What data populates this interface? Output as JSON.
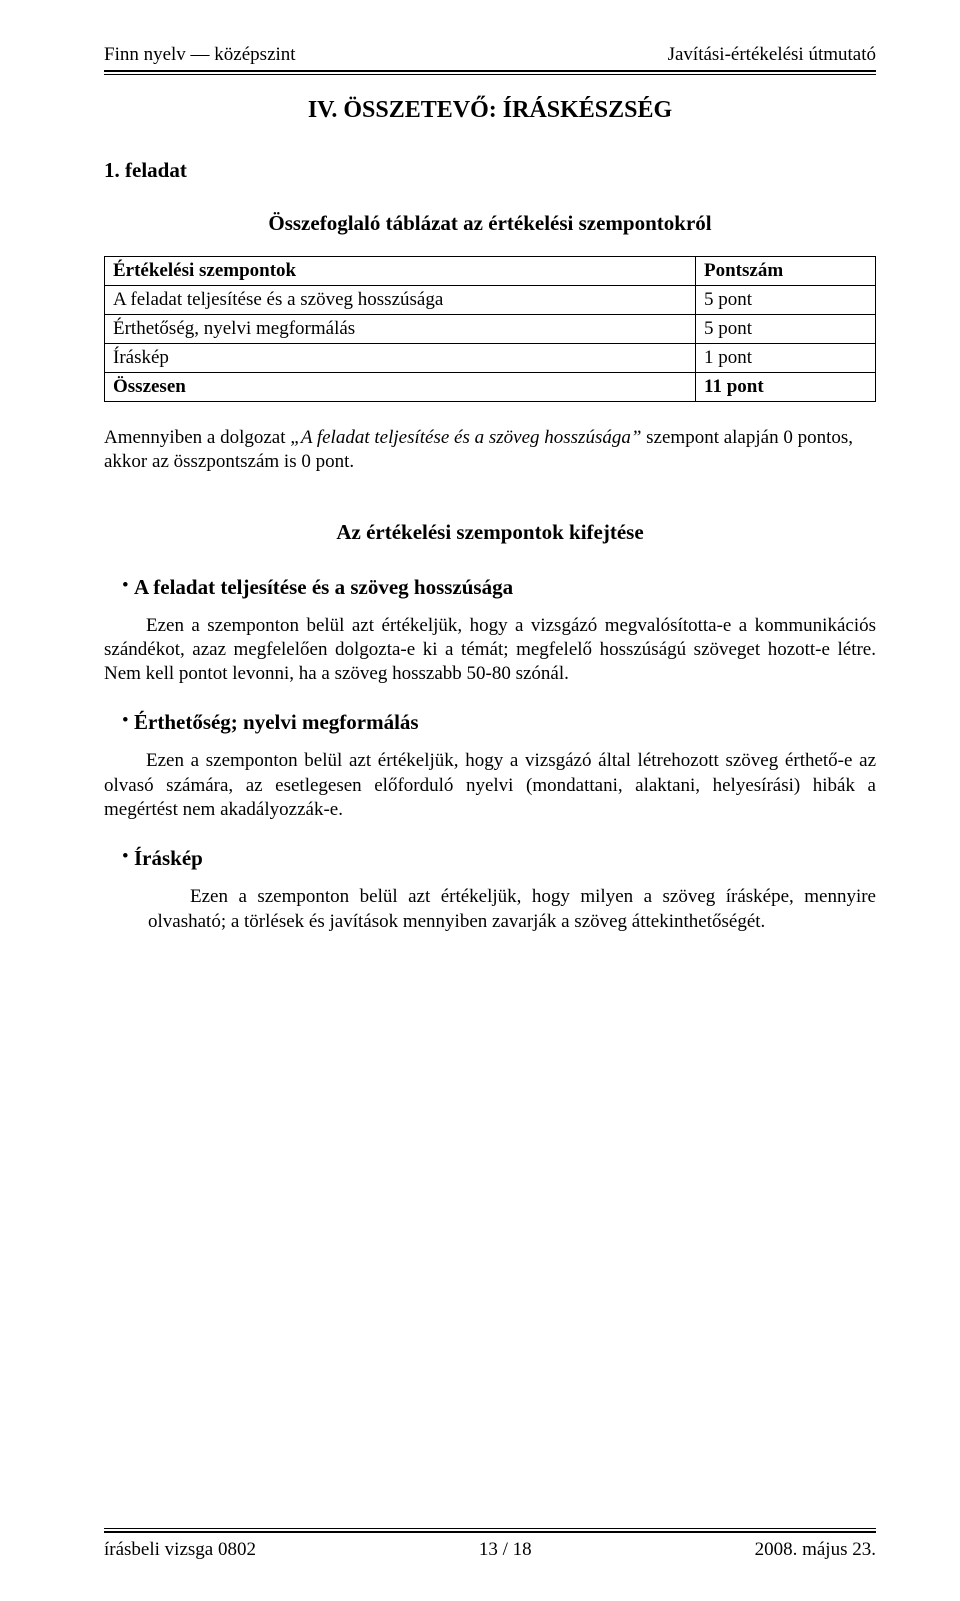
{
  "header": {
    "left": "Finn nyelv — középszint",
    "right": "Javítási-értékelési útmutató"
  },
  "section_title": "IV. ÖSSZETEVŐ: ÍRÁSKÉSZSÉG",
  "task_label": "1. feladat",
  "table_title": "Összefoglaló táblázat az értékelési szempontokról",
  "table": {
    "header": {
      "criteria": "Értékelési szempontok",
      "points": "Pontszám"
    },
    "rows": [
      {
        "criteria": "A feladat teljesítése és a szöveg hosszúsága",
        "points": "5 pont"
      },
      {
        "criteria": "Érthetőség, nyelvi megformálás",
        "points": "5 pont"
      },
      {
        "criteria": "Íráskép",
        "points": "1 pont"
      }
    ],
    "total": {
      "criteria": "Összesen",
      "points": "11 pont"
    }
  },
  "note": {
    "prefix": "Amennyiben a dolgozat ",
    "italic": "„A feladat teljesítése és a szöveg hosszúsága”",
    "suffix": " szempont alapján 0 pontos, akkor az összpontszám is 0 pont."
  },
  "sub_title": "Az értékelési szempontok kifejtése",
  "bullets": {
    "b1": {
      "title": "A feladat teljesítése és a szöveg hosszúsága",
      "text": "Ezen a szemponton belül azt értékeljük, hogy a vizsgázó megvalósította-e a kommunikációs szándékot, azaz megfelelően dolgozta-e ki a témát; megfelelő hosszúságú szöveget hozott-e létre. Nem kell pontot levonni, ha a szöveg hosszabb 50-80 szónál."
    },
    "b2": {
      "title": "Érthetőség; nyelvi megformálás",
      "text": "Ezen a szemponton belül azt értékeljük, hogy a vizsgázó által létrehozott szöveg érthető-e az olvasó számára, az esetlegesen előforduló nyelvi (mondattani, alaktani, helyesírási) hibák a megértést nem akadályozzák-e."
    },
    "b3": {
      "title": "Íráskép",
      "text": "Ezen a szemponton belül azt értékeljük, hogy milyen a szöveg írásképe, mennyire olvasható; a törlések és javítások mennyiben zavarják a szöveg áttekinthetőségét."
    }
  },
  "footer": {
    "left": "írásbeli vizsga 0802",
    "center": "13 / 18",
    "right": "2008. május 23."
  }
}
